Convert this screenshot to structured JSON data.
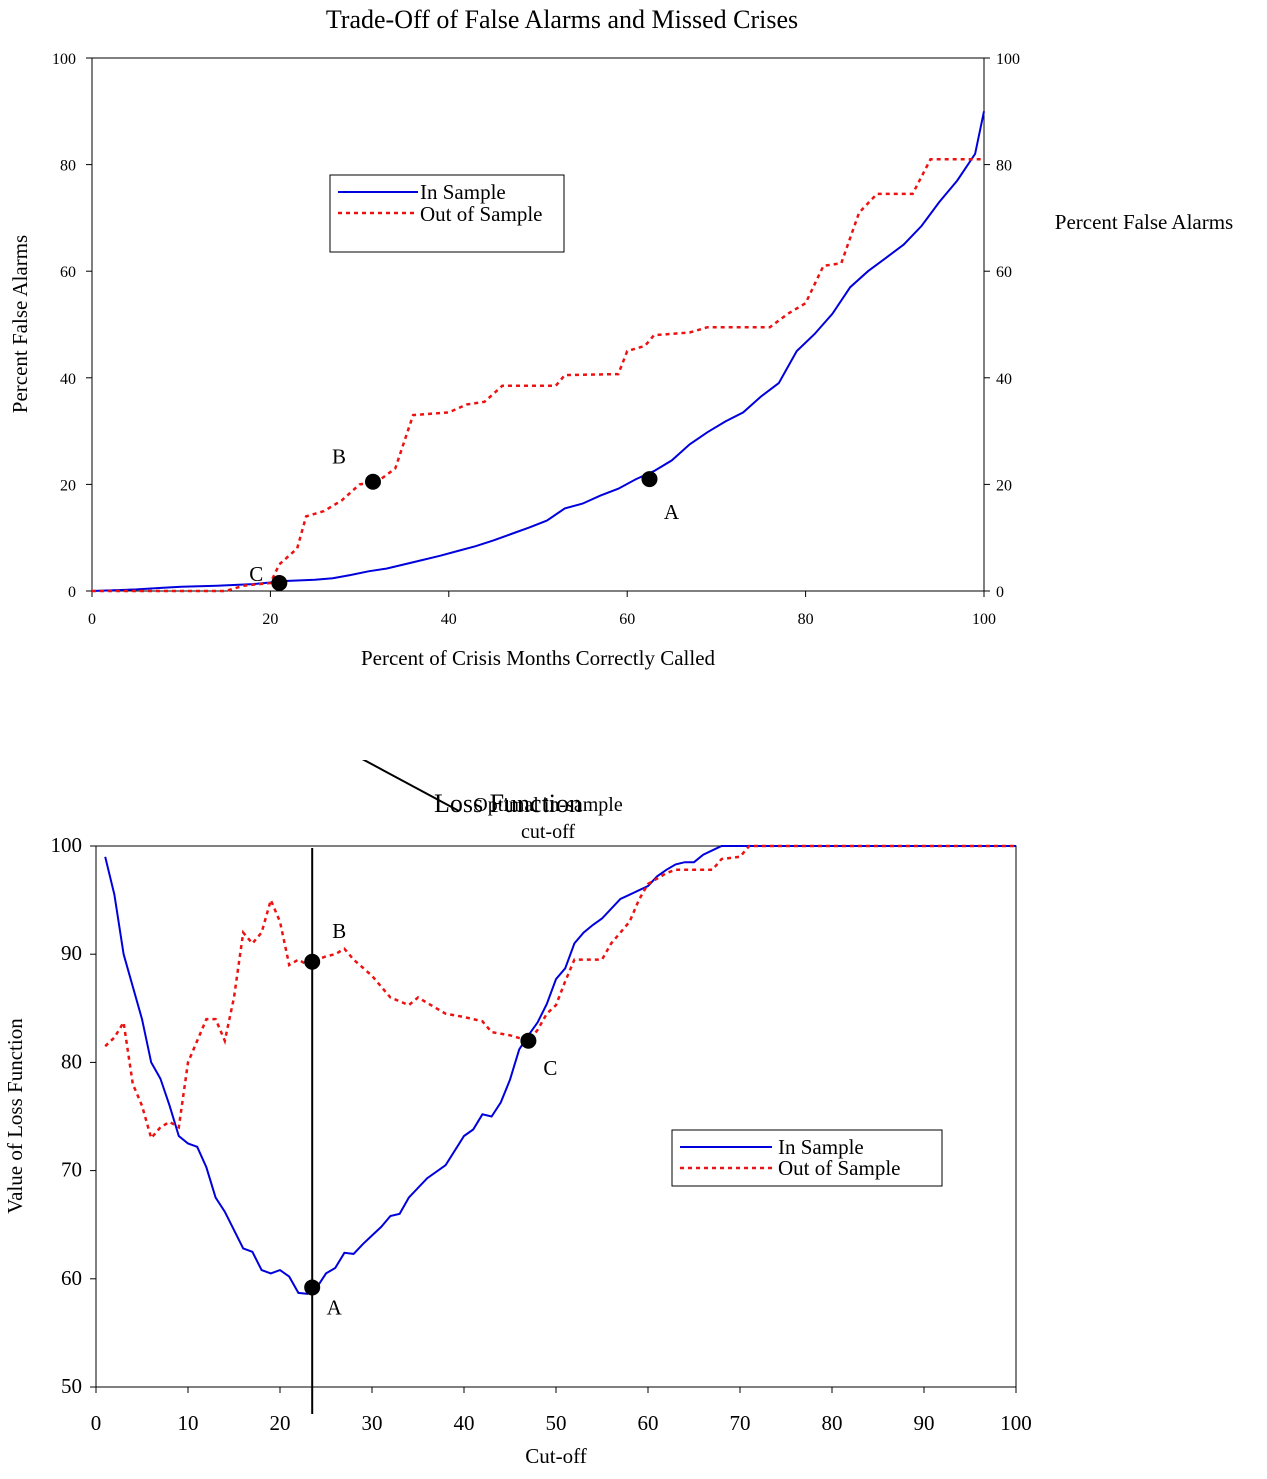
{
  "chart_data": [
    {
      "type": "line",
      "title": "Trade-Off of False Alarms and Missed Crises",
      "xlabel": "Percent of Crisis Months Correctly Called",
      "ylabel": "Percent False Alarms",
      "ylabel_right": "Percent False Alarms",
      "xlim": [
        0,
        100
      ],
      "ylim": [
        0,
        100
      ],
      "x_ticks": [
        "0",
        "20",
        "40",
        "60",
        "80",
        "100"
      ],
      "y_ticks": [
        "0",
        "20",
        "40",
        "60",
        "80",
        "100"
      ],
      "grid": false,
      "legend": {
        "position": "upper-left-center",
        "entries": [
          "In Sample",
          "Out of Sample"
        ]
      },
      "series": [
        {
          "name": "In Sample",
          "color": "#0000dd",
          "style": "solid",
          "points": [
            [
              0,
              0
            ],
            [
              5,
              0.3
            ],
            [
              8,
              0.6
            ],
            [
              10,
              0.8
            ],
            [
              14,
              1
            ],
            [
              18,
              1.3
            ],
            [
              20,
              1.6
            ],
            [
              22,
              1.9
            ],
            [
              25,
              2.1
            ],
            [
              27,
              2.4
            ],
            [
              29,
              3
            ],
            [
              31,
              3.7
            ],
            [
              33,
              4.2
            ],
            [
              35,
              5
            ],
            [
              37,
              5.8
            ],
            [
              39,
              6.6
            ],
            [
              41,
              7.5
            ],
            [
              43,
              8.4
            ],
            [
              45,
              9.5
            ],
            [
              47,
              10.7
            ],
            [
              49,
              11.9
            ],
            [
              51,
              13.2
            ],
            [
              53,
              15.5
            ],
            [
              55,
              16.4
            ],
            [
              57,
              17.9
            ],
            [
              59,
              19.2
            ],
            [
              61,
              21
            ],
            [
              63,
              22.5
            ],
            [
              65,
              24.5
            ],
            [
              67,
              27.5
            ],
            [
              69,
              29.8
            ],
            [
              71,
              31.8
            ],
            [
              73,
              33.5
            ],
            [
              75,
              36.5
            ],
            [
              77,
              39
            ],
            [
              79,
              45
            ],
            [
              81,
              48.2
            ],
            [
              83,
              52
            ],
            [
              85,
              57
            ],
            [
              87,
              60
            ],
            [
              89,
              62.5
            ],
            [
              91,
              65
            ],
            [
              93,
              68.5
            ],
            [
              95,
              73
            ],
            [
              97,
              77
            ],
            [
              99,
              82
            ],
            [
              100,
              90
            ]
          ]
        },
        {
          "name": "Out of Sample",
          "color": "#ee1111",
          "style": "dotted",
          "points": [
            [
              0,
              0
            ],
            [
              15,
              0
            ],
            [
              17,
              1
            ],
            [
              20,
              1.5
            ],
            [
              21,
              5
            ],
            [
              23,
              8
            ],
            [
              24,
              14
            ],
            [
              26,
              15
            ],
            [
              28,
              17
            ],
            [
              30,
              20
            ],
            [
              32,
              20.5
            ],
            [
              34,
              23
            ],
            [
              36,
              33
            ],
            [
              40,
              33.5
            ],
            [
              42,
              35
            ],
            [
              44,
              35.5
            ],
            [
              46,
              38.5
            ],
            [
              52,
              38.5
            ],
            [
              53,
              40.5
            ],
            [
              59,
              40.7
            ],
            [
              60,
              45
            ],
            [
              62,
              46
            ],
            [
              63,
              48
            ],
            [
              67,
              48.5
            ],
            [
              69,
              49.5
            ],
            [
              76,
              49.5
            ],
            [
              78,
              52
            ],
            [
              80,
              54
            ],
            [
              82,
              61
            ],
            [
              84,
              61.5
            ],
            [
              86,
              71
            ],
            [
              88,
              74.5
            ],
            [
              92,
              74.5
            ],
            [
              94,
              81
            ],
            [
              100,
              81
            ]
          ]
        }
      ],
      "points": [
        {
          "label": "A",
          "x": 62.5,
          "y": 21
        },
        {
          "label": "B",
          "x": 31.5,
          "y": 20.5
        },
        {
          "label": "C",
          "x": 21,
          "y": 1.5
        }
      ]
    },
    {
      "type": "line",
      "title": "Loss Function",
      "xlabel": "Cut-off",
      "ylabel": "Value of Loss Function",
      "xlim": [
        0,
        100
      ],
      "ylim": [
        50,
        100
      ],
      "x_ticks": [
        "0",
        "10",
        "20",
        "30",
        "40",
        "50",
        "60",
        "70",
        "80",
        "90",
        "100"
      ],
      "y_ticks": [
        "50",
        "60",
        "70",
        "80",
        "90",
        "100"
      ],
      "grid": false,
      "legend": {
        "position": "right-middle",
        "entries": [
          "In Sample",
          "Out of Sample"
        ]
      },
      "series": [
        {
          "name": "In Sample",
          "color": "#0000dd",
          "style": "solid",
          "points": [
            [
              1,
              99
            ],
            [
              2,
              95.5
            ],
            [
              3,
              90
            ],
            [
              5,
              84
            ],
            [
              6,
              80
            ],
            [
              7,
              78.5
            ],
            [
              8,
              76
            ],
            [
              9,
              73.2
            ],
            [
              10,
              72.5
            ],
            [
              11,
              72.2
            ],
            [
              12,
              70.3
            ],
            [
              13,
              67.5
            ],
            [
              14,
              66.2
            ],
            [
              15,
              64.5
            ],
            [
              16,
              62.8
            ],
            [
              17,
              62.5
            ],
            [
              18,
              60.8
            ],
            [
              19,
              60.5
            ],
            [
              20,
              60.8
            ],
            [
              21,
              60.2
            ],
            [
              22,
              58.7
            ],
            [
              23,
              58.6
            ],
            [
              24,
              59.2
            ],
            [
              25,
              60.5
            ],
            [
              26,
              61
            ],
            [
              27,
              62.4
            ],
            [
              28,
              62.3
            ],
            [
              29,
              63.2
            ],
            [
              30,
              64
            ],
            [
              31,
              64.8
            ],
            [
              32,
              65.8
            ],
            [
              33,
              66
            ],
            [
              34,
              67.5
            ],
            [
              36,
              69.3
            ],
            [
              38,
              70.5
            ],
            [
              40,
              73.2
            ],
            [
              41,
              73.8
            ],
            [
              42,
              75.2
            ],
            [
              43,
              75
            ],
            [
              44,
              76.3
            ],
            [
              45,
              78.4
            ],
            [
              46,
              81.2
            ],
            [
              47,
              82.5
            ],
            [
              48,
              83.7
            ],
            [
              49,
              85.4
            ],
            [
              50,
              87.7
            ],
            [
              51,
              88.7
            ],
            [
              52,
              91
            ],
            [
              53,
              92
            ],
            [
              54,
              92.7
            ],
            [
              55,
              93.3
            ],
            [
              57,
              95.1
            ],
            [
              58,
              95.5
            ],
            [
              60,
              96.3
            ],
            [
              61,
              97.2
            ],
            [
              62,
              97.8
            ],
            [
              63,
              98.3
            ],
            [
              64,
              98.5
            ],
            [
              65,
              98.5
            ],
            [
              66,
              99.2
            ],
            [
              67,
              99.6
            ],
            [
              68,
              100
            ],
            [
              100,
              100
            ]
          ]
        },
        {
          "name": "Out of Sample",
          "color": "#ee1111",
          "style": "dotted",
          "points": [
            [
              1,
              81.5
            ],
            [
              2,
              82.3
            ],
            [
              3,
              83.7
            ],
            [
              4,
              78
            ],
            [
              5,
              76
            ],
            [
              6,
              73
            ],
            [
              7,
              74
            ],
            [
              8,
              74.5
            ],
            [
              9,
              74
            ],
            [
              10,
              80
            ],
            [
              11,
              82
            ],
            [
              12,
              84
            ],
            [
              13,
              84
            ],
            [
              14,
              82
            ],
            [
              15,
              86
            ],
            [
              16,
              92
            ],
            [
              17,
              91
            ],
            [
              18,
              92
            ],
            [
              19,
              95
            ],
            [
              20,
              93
            ],
            [
              21,
              89
            ],
            [
              22,
              89.5
            ],
            [
              23,
              89
            ],
            [
              24,
              89.5
            ],
            [
              25,
              89.8
            ],
            [
              26,
              90
            ],
            [
              27,
              90.5
            ],
            [
              28,
              89.5
            ],
            [
              30,
              88
            ],
            [
              32,
              86
            ],
            [
              34,
              85.3
            ],
            [
              35,
              86
            ],
            [
              36,
              85.5
            ],
            [
              37,
              85
            ],
            [
              38,
              84.5
            ],
            [
              40,
              84.2
            ],
            [
              42,
              83.8
            ],
            [
              43,
              82.8
            ],
            [
              45,
              82.5
            ],
            [
              47,
              82
            ],
            [
              48,
              83
            ],
            [
              49,
              84.5
            ],
            [
              50,
              85.3
            ],
            [
              51,
              87.5
            ],
            [
              52,
              89.5
            ],
            [
              55,
              89.5
            ],
            [
              56,
              91
            ],
            [
              58,
              93
            ],
            [
              59,
              95
            ],
            [
              60,
              96.5
            ],
            [
              62,
              97.5
            ],
            [
              63,
              97.8
            ],
            [
              67,
              97.8
            ],
            [
              68,
              98.8
            ],
            [
              70,
              99
            ],
            [
              71,
              100
            ],
            [
              100,
              100
            ]
          ]
        }
      ],
      "vertical_line_x": 23.5,
      "points": [
        {
          "label": "A",
          "x": 23.5,
          "y": 59.2
        },
        {
          "label": "B",
          "x": 23.5,
          "y": 89.3
        },
        {
          "label": "C",
          "x": 47,
          "y": 82
        }
      ],
      "annotation": {
        "line1": "Optimal in-sample",
        "line2": "cut-off"
      }
    }
  ]
}
